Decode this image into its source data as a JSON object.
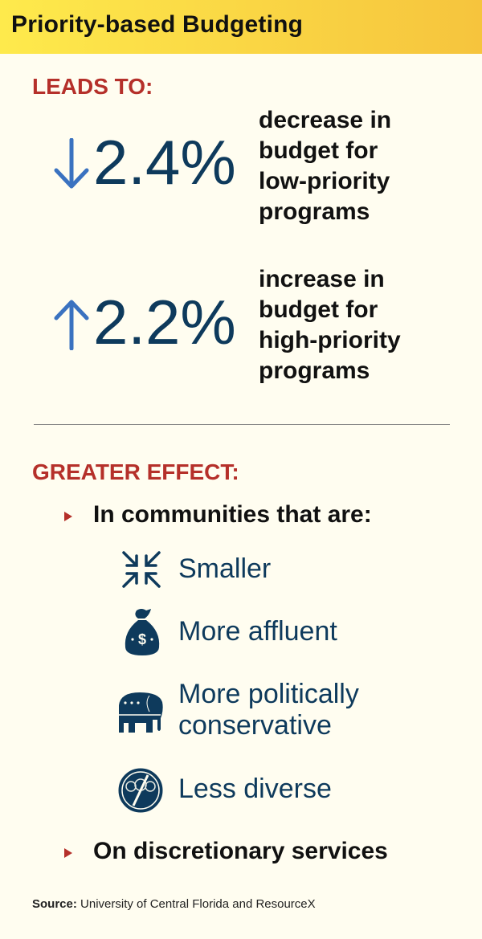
{
  "header": {
    "title": "Priority-based Budgeting"
  },
  "colors": {
    "header_gradient": [
      "#feea4c",
      "#f6c43d"
    ],
    "background": "#fffdf0",
    "accent_red": "#b5302a",
    "navy": "#0e3a5c",
    "arrow_blue": "#3a72c0"
  },
  "leads_to": {
    "heading": "LEADS TO:",
    "stats": [
      {
        "icon": "arrow-down-icon",
        "value": "2.4%",
        "lines": [
          "decrease in",
          "budget for",
          "low-priority",
          "programs"
        ]
      },
      {
        "icon": "arrow-up-icon",
        "value": "2.2%",
        "lines": [
          "increase in",
          "budget for",
          "high-priority",
          "programs"
        ]
      }
    ]
  },
  "greater_effect": {
    "heading": "GREATER EFFECT:",
    "bullet1": "In communities that are:",
    "items": [
      {
        "icon": "compress-arrows-icon",
        "lines": [
          "Smaller"
        ]
      },
      {
        "icon": "money-bag-icon",
        "lines": [
          "More affluent"
        ]
      },
      {
        "icon": "republican-elephant-icon",
        "lines": [
          "More politically",
          "conservative"
        ]
      },
      {
        "icon": "no-diversity-people-icon",
        "lines": [
          "Less diverse"
        ]
      }
    ],
    "bullet2": "On discretionary services"
  },
  "source": {
    "label": "Source:",
    "text": " University of Central Florida and ResourceX"
  }
}
